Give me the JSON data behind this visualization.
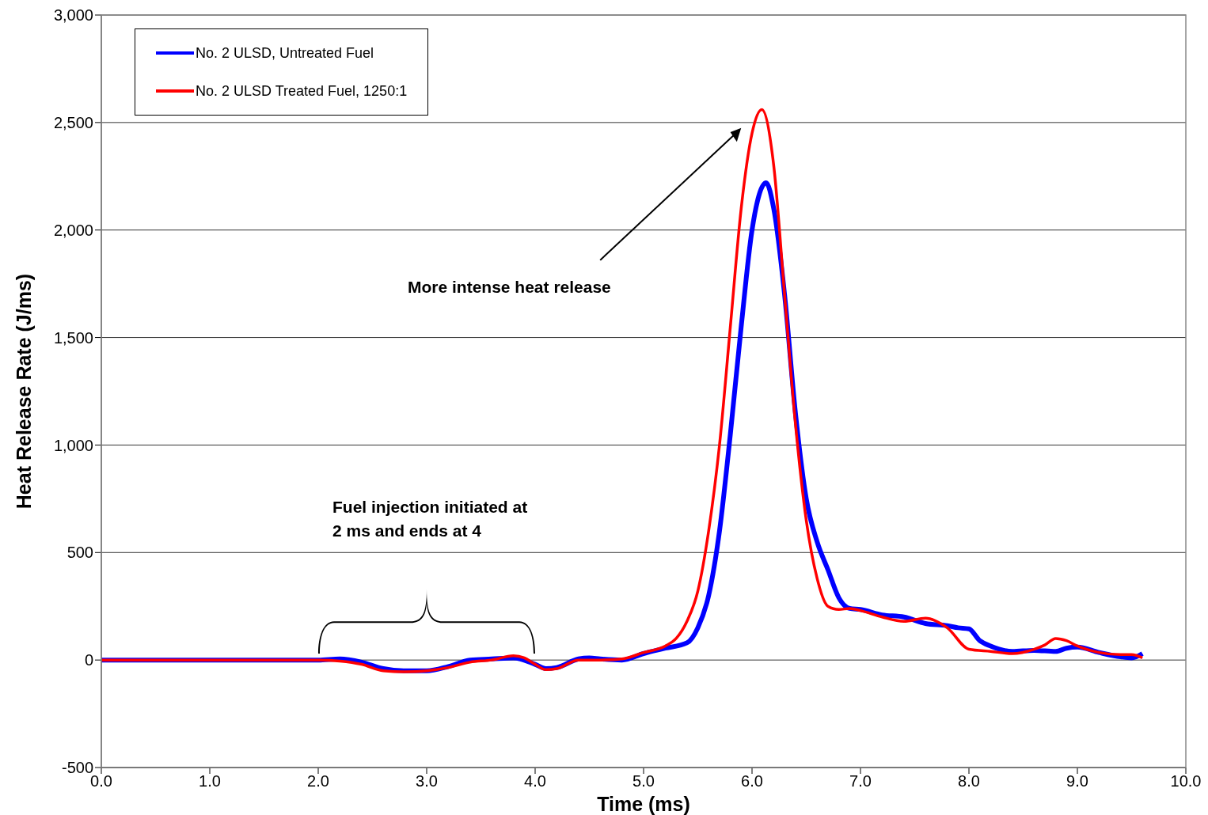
{
  "chart_data": {
    "type": "line",
    "xlabel": "Time (ms)",
    "ylabel": "Heat Release Rate (J/ms)",
    "xlim": [
      0,
      10
    ],
    "ylim": [
      -500,
      3000
    ],
    "xticks": [
      {
        "value": 0,
        "label": "0.0"
      },
      {
        "value": 1,
        "label": "1.0"
      },
      {
        "value": 2,
        "label": "2.0"
      },
      {
        "value": 3,
        "label": "3.0"
      },
      {
        "value": 4,
        "label": "4.0"
      },
      {
        "value": 5,
        "label": "5.0"
      },
      {
        "value": 6,
        "label": "6.0"
      },
      {
        "value": 7,
        "label": "7.0"
      },
      {
        "value": 8,
        "label": "8.0"
      },
      {
        "value": 9,
        "label": "9.0"
      },
      {
        "value": 10,
        "label": "10.0"
      }
    ],
    "yticks": [
      -500,
      0,
      500,
      {
        "value": 1000,
        "label": "1,000"
      },
      {
        "value": 1500,
        "label": "1,500"
      },
      {
        "value": 2000,
        "label": "2,000"
      },
      {
        "value": 2500,
        "label": "2,500"
      },
      {
        "value": 3000,
        "label": "3,000"
      }
    ],
    "grid": "y",
    "legend": "top left",
    "marker": "none",
    "line_style": "solid",
    "annotations": [
      "More intense heat release",
      "Fuel injection initiated at 2 ms and ends at 4"
    ],
    "series": [
      {
        "name": "No. 2 ULSD, Untreated Fuel",
        "color": "#0000ff",
        "x": [
          0,
          2.0,
          2.2,
          2.4,
          2.6,
          2.8,
          3.0,
          3.2,
          3.4,
          3.6,
          3.8,
          4.0,
          4.1,
          4.2,
          4.4,
          4.5,
          4.6,
          4.8,
          5.0,
          5.2,
          5.4,
          5.5,
          5.6,
          5.7,
          5.8,
          5.9,
          6.0,
          6.13,
          6.2,
          6.3,
          6.4,
          6.5,
          6.6,
          6.7,
          6.8,
          6.9,
          7.0,
          7.2,
          7.4,
          7.6,
          7.8,
          7.9,
          8.0,
          8.1,
          8.2,
          8.4,
          8.6,
          8.8,
          8.9,
          9.0,
          9.2,
          9.4,
          9.5,
          9.6
        ],
        "values": [
          0,
          0,
          5,
          -10,
          -40,
          -50,
          -50,
          -30,
          0,
          5,
          10,
          -20,
          -40,
          -35,
          5,
          10,
          5,
          0,
          30,
          55,
          80,
          150,
          300,
          600,
          1050,
          1550,
          2000,
          2220,
          2100,
          1700,
          1150,
          750,
          550,
          420,
          290,
          240,
          235,
          210,
          200,
          170,
          160,
          150,
          145,
          90,
          65,
          40,
          45,
          40,
          55,
          60,
          35,
          15,
          10,
          30
        ]
      },
      {
        "name": "No. 2 ULSD Treated Fuel, 1250:1",
        "color": "#ff0000",
        "x": [
          0,
          2.0,
          2.2,
          2.4,
          2.6,
          2.8,
          3.0,
          3.2,
          3.4,
          3.6,
          3.8,
          3.9,
          4.0,
          4.1,
          4.2,
          4.4,
          4.6,
          4.8,
          5.0,
          5.2,
          5.3,
          5.4,
          5.5,
          5.6,
          5.7,
          5.8,
          5.9,
          6.0,
          6.09,
          6.2,
          6.3,
          6.4,
          6.5,
          6.6,
          6.7,
          6.8,
          6.9,
          7.0,
          7.2,
          7.4,
          7.6,
          7.8,
          8.0,
          8.2,
          8.4,
          8.6,
          8.7,
          8.8,
          8.9,
          9.0,
          9.2,
          9.4,
          9.5,
          9.6
        ],
        "values": [
          0,
          0,
          -5,
          -20,
          -50,
          -55,
          -50,
          -35,
          -10,
          0,
          20,
          10,
          -20,
          -45,
          -40,
          0,
          0,
          5,
          35,
          65,
          100,
          180,
          320,
          600,
          1000,
          1550,
          2100,
          2450,
          2560,
          2300,
          1700,
          1100,
          650,
          380,
          250,
          235,
          240,
          230,
          200,
          180,
          195,
          150,
          50,
          40,
          30,
          50,
          70,
          100,
          90,
          65,
          35,
          25,
          25,
          10
        ]
      }
    ]
  }
}
